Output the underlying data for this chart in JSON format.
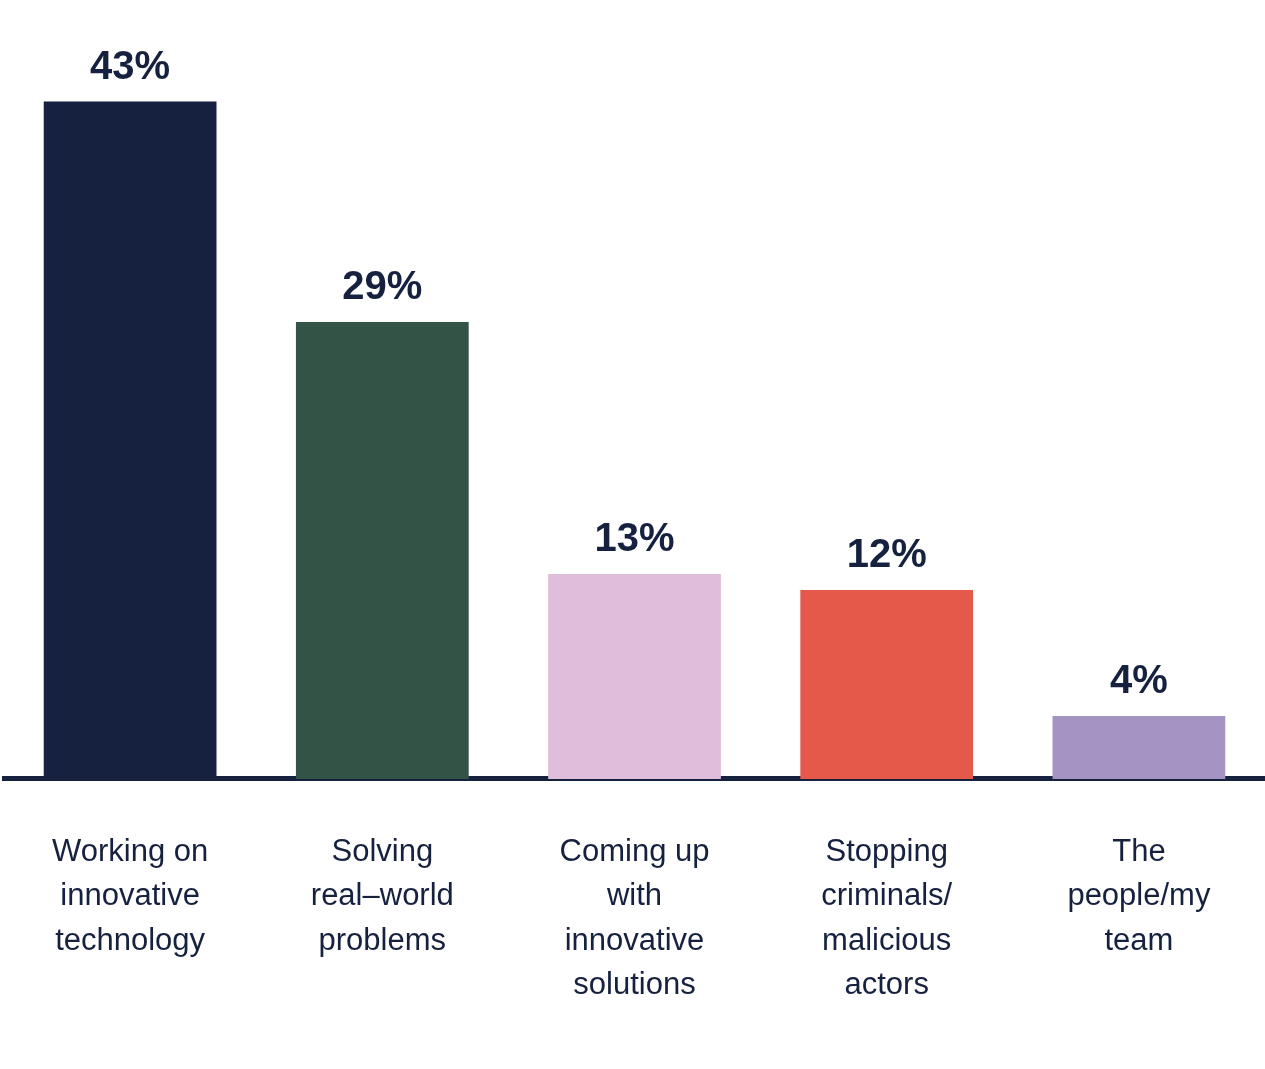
{
  "chart_data": {
    "type": "bar",
    "categories": [
      "Working on innovative technology",
      "Solving real–world problems",
      "Coming up with innovative solutions",
      "Stopping criminals/ malicious actors",
      "The people/my team"
    ],
    "values": [
      43,
      29,
      13,
      12,
      4
    ],
    "colors": [
      "#16213f",
      "#335346",
      "#e0bddb",
      "#e5594b",
      "#a593c3"
    ],
    "value_labels": [
      "43%",
      "29%",
      "13%",
      "12%",
      "4%"
    ],
    "grid": false,
    "legend": false
  }
}
